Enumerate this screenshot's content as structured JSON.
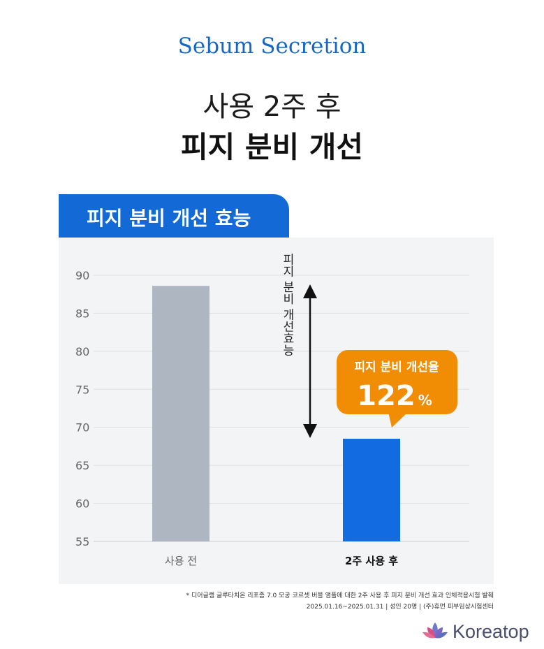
{
  "header": {
    "eyebrow": "Sebum Secretion",
    "line1": "사용 2주 후",
    "line2": "피지 분비 개선"
  },
  "panel": {
    "tab_label": "피지 분비 개선 효능"
  },
  "chart_data": {
    "type": "bar",
    "categories": [
      "사용 전",
      "2주 사용 후"
    ],
    "values": [
      88.6,
      68.5
    ],
    "bar_colors": [
      "#aeb6c1",
      "#126be0"
    ],
    "ylim": [
      55,
      90
    ],
    "yticks": [
      90,
      85,
      80,
      75,
      70,
      65,
      60,
      55
    ],
    "grid": true,
    "annotations": {
      "arrow_label": "피지 분비 개선효능",
      "callout_title": "피지 분비 개선율",
      "callout_value": "122",
      "callout_unit": "%",
      "callout_color": "#f18d05"
    }
  },
  "footnote": {
    "line1": "* 디어글램 글루타치온 리포좀 7.0 모공 코르셋 버블 앰플에 대한 2주 사용 후 피지 분비 개선 효과 인체적용시험 발췌",
    "line2": "2025.01.16~2025.01.31    |    성인 20명    |    (주)휴먼 피부임상시험센터"
  },
  "brand": {
    "name": "Koreatop",
    "icon": "lotus-icon"
  }
}
